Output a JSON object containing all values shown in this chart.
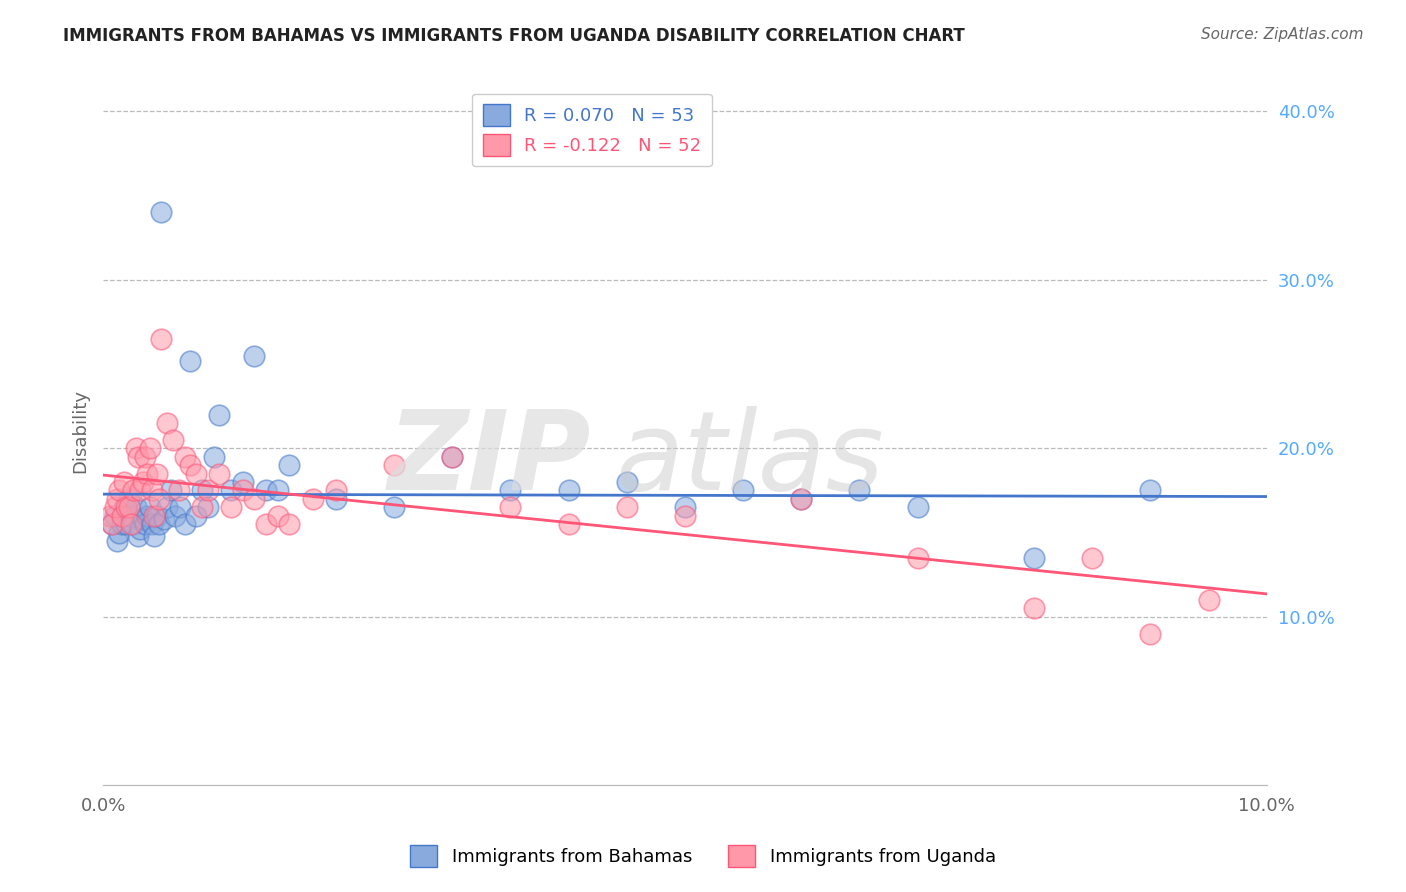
{
  "title": "IMMIGRANTS FROM BAHAMAS VS IMMIGRANTS FROM UGANDA DISABILITY CORRELATION CHART",
  "source": "Source: ZipAtlas.com",
  "ylabel": "Disability",
  "r_bahamas": 0.07,
  "n_bahamas": 53,
  "r_uganda": -0.122,
  "n_uganda": 52,
  "xlim": [
    0.0,
    0.1
  ],
  "ylim": [
    0.0,
    0.42
  ],
  "yticks": [
    0.1,
    0.2,
    0.3,
    0.4
  ],
  "ytick_labels": [
    "10.0%",
    "20.0%",
    "30.0%",
    "40.0%"
  ],
  "color_bahamas": "#88AADD",
  "color_uganda": "#FF99AA",
  "line_color_bahamas": "#4477CC",
  "line_color_uganda": "#FF5577",
  "background_color": "#FFFFFF",
  "legend_label_bahamas": "Immigrants from Bahamas",
  "legend_label_uganda": "Immigrants from Uganda",
  "bahamas_x": [
    0.0008,
    0.001,
    0.0012,
    0.0014,
    0.0016,
    0.0018,
    0.002,
    0.0022,
    0.0024,
    0.0026,
    0.0028,
    0.003,
    0.0032,
    0.0034,
    0.0036,
    0.0038,
    0.004,
    0.0042,
    0.0044,
    0.0046,
    0.0048,
    0.005,
    0.0052,
    0.0055,
    0.0058,
    0.0062,
    0.0066,
    0.007,
    0.0075,
    0.008,
    0.0085,
    0.009,
    0.0095,
    0.01,
    0.011,
    0.012,
    0.013,
    0.014,
    0.015,
    0.016,
    0.02,
    0.025,
    0.03,
    0.035,
    0.04,
    0.045,
    0.05,
    0.055,
    0.06,
    0.065,
    0.07,
    0.08,
    0.09
  ],
  "bahamas_y": [
    0.155,
    0.16,
    0.145,
    0.15,
    0.155,
    0.165,
    0.155,
    0.17,
    0.16,
    0.155,
    0.165,
    0.148,
    0.152,
    0.158,
    0.155,
    0.16,
    0.165,
    0.155,
    0.148,
    0.16,
    0.155,
    0.34,
    0.158,
    0.165,
    0.175,
    0.16,
    0.165,
    0.155,
    0.252,
    0.16,
    0.175,
    0.165,
    0.195,
    0.22,
    0.175,
    0.18,
    0.255,
    0.175,
    0.175,
    0.19,
    0.17,
    0.165,
    0.195,
    0.175,
    0.175,
    0.18,
    0.165,
    0.175,
    0.17,
    0.175,
    0.165,
    0.135,
    0.175
  ],
  "uganda_x": [
    0.0006,
    0.0008,
    0.001,
    0.0012,
    0.0014,
    0.0016,
    0.0018,
    0.002,
    0.0022,
    0.0024,
    0.0026,
    0.0028,
    0.003,
    0.0032,
    0.0034,
    0.0036,
    0.0038,
    0.004,
    0.0042,
    0.0044,
    0.0046,
    0.0048,
    0.005,
    0.0055,
    0.006,
    0.0065,
    0.007,
    0.0075,
    0.008,
    0.0085,
    0.009,
    0.01,
    0.011,
    0.012,
    0.013,
    0.014,
    0.015,
    0.016,
    0.018,
    0.02,
    0.025,
    0.03,
    0.035,
    0.04,
    0.045,
    0.05,
    0.06,
    0.07,
    0.08,
    0.085,
    0.09,
    0.095
  ],
  "uganda_y": [
    0.16,
    0.155,
    0.165,
    0.17,
    0.175,
    0.16,
    0.18,
    0.165,
    0.165,
    0.155,
    0.175,
    0.2,
    0.195,
    0.175,
    0.18,
    0.195,
    0.185,
    0.2,
    0.175,
    0.16,
    0.185,
    0.17,
    0.265,
    0.215,
    0.205,
    0.175,
    0.195,
    0.19,
    0.185,
    0.165,
    0.175,
    0.185,
    0.165,
    0.175,
    0.17,
    0.155,
    0.16,
    0.155,
    0.17,
    0.175,
    0.19,
    0.195,
    0.165,
    0.155,
    0.165,
    0.16,
    0.17,
    0.135,
    0.105,
    0.135,
    0.09,
    0.11
  ]
}
